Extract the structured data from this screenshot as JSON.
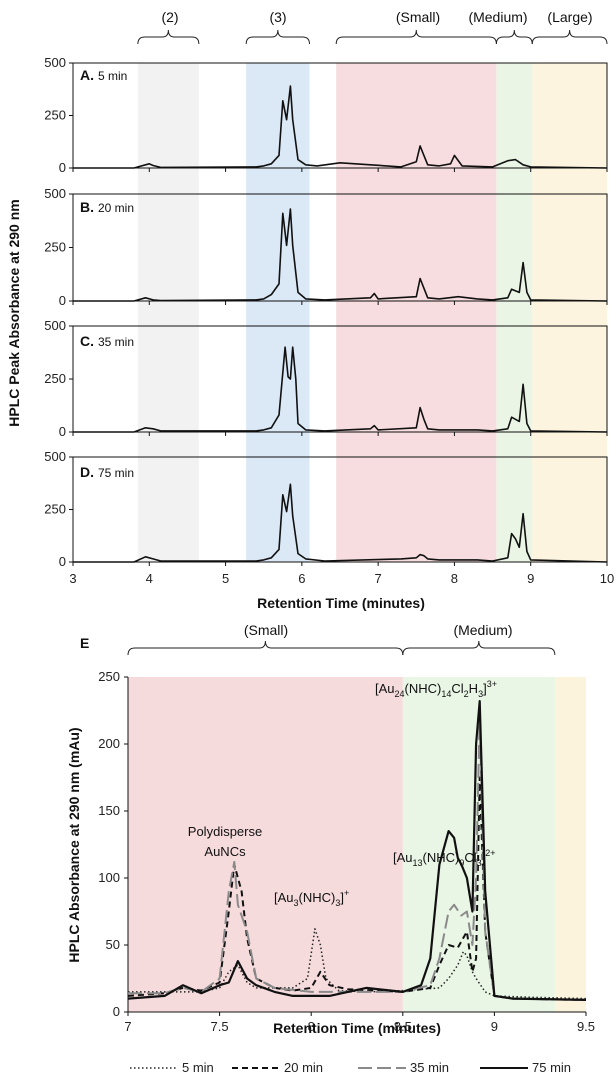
{
  "top": {
    "brackets": [
      "(2)",
      "(3)",
      "(Small)",
      "(Medium)",
      "(Large)"
    ],
    "ylabel": "HPLC Peak Absorbance at 290 nm",
    "xlabel": "Retention Time (minutes)",
    "xticks": [
      "3",
      "4",
      "5",
      "6",
      "7",
      "8",
      "9",
      "10"
    ],
    "yticks": [
      "0",
      "250",
      "500"
    ],
    "panels": [
      {
        "letter": "A.",
        "time": "5 min"
      },
      {
        "letter": "B.",
        "time": "20 min"
      },
      {
        "letter": "C.",
        "time": "35 min"
      },
      {
        "letter": "D.",
        "time": "75 min"
      }
    ]
  },
  "bottom": {
    "letter": "E",
    "brackets": [
      "(Small)",
      "(Medium)"
    ],
    "ylabel": "HPLC Absorbance at 290 nm (mAu)",
    "xlabel": "Retention Time (minutes)",
    "xticks": [
      "7",
      "7.5",
      "8",
      "8.5",
      "9",
      "9.5"
    ],
    "yticks": [
      "0",
      "50",
      "100",
      "150",
      "200",
      "250"
    ],
    "annotations": {
      "poly1": "Polydisperse",
      "poly2": "AuNCs"
    },
    "legend": [
      "5 min",
      "20 min",
      "35 min",
      "75 min"
    ]
  },
  "colors": {
    "region2": "#ededed",
    "region3": "#cfe0f2",
    "small": "#f4d2d4",
    "medium": "#e3f2de",
    "large": "#fbf0d4",
    "line5": "#222222",
    "line20": "#111111",
    "line35": "#8a8a8a",
    "line75": "#111111"
  },
  "chart_data": [
    {
      "type": "line",
      "title": "",
      "xlabel": "Retention Time (minutes)",
      "ylabel": "HPLC Peak Absorbance at 290 nm",
      "xlim": [
        3,
        10
      ],
      "ylim": [
        0,
        500
      ],
      "regions": [
        {
          "label": "(2)",
          "range": [
            3.85,
            4.65
          ]
        },
        {
          "label": "(3)",
          "range": [
            5.27,
            6.1
          ]
        },
        {
          "label": "(Small)",
          "range": [
            6.45,
            8.55
          ]
        },
        {
          "label": "(Medium)",
          "range": [
            8.55,
            9.02
          ]
        },
        {
          "label": "(Large)",
          "range": [
            9.02,
            10
          ]
        }
      ],
      "panels": [
        {
          "name": "A. 5 min",
          "x": [
            3.0,
            3.8,
            3.95,
            4.0,
            4.05,
            4.15,
            5.4,
            5.5,
            5.6,
            5.7,
            5.75,
            5.8,
            5.85,
            5.88,
            5.95,
            6.05,
            6.2,
            6.5,
            6.9,
            7.3,
            7.5,
            7.55,
            7.6,
            7.65,
            7.8,
            7.95,
            8.0,
            8.1,
            8.5,
            8.7,
            8.8,
            8.9,
            9.0,
            10.0
          ],
          "y": [
            0,
            0,
            15,
            20,
            12,
            3,
            5,
            10,
            20,
            60,
            320,
            230,
            390,
            230,
            40,
            15,
            10,
            25,
            15,
            5,
            30,
            105,
            60,
            15,
            10,
            20,
            60,
            10,
            5,
            35,
            40,
            15,
            5,
            0
          ]
        },
        {
          "name": "B. 20 min",
          "x": [
            3.0,
            3.8,
            3.95,
            4.05,
            4.15,
            5.4,
            5.5,
            5.6,
            5.7,
            5.75,
            5.8,
            5.85,
            5.88,
            5.95,
            6.05,
            6.3,
            6.9,
            6.95,
            7.0,
            7.5,
            7.55,
            7.6,
            7.65,
            7.8,
            8.05,
            8.3,
            8.5,
            8.7,
            8.75,
            8.85,
            8.9,
            8.95,
            9.0,
            10.0
          ],
          "y": [
            0,
            0,
            15,
            5,
            2,
            5,
            10,
            30,
            80,
            410,
            260,
            430,
            260,
            40,
            10,
            5,
            15,
            35,
            10,
            20,
            105,
            60,
            15,
            10,
            20,
            10,
            5,
            15,
            55,
            40,
            180,
            40,
            5,
            0
          ]
        },
        {
          "name": "C. 35 min",
          "x": [
            3.0,
            3.8,
            3.95,
            4.05,
            4.15,
            5.4,
            5.5,
            5.6,
            5.7,
            5.78,
            5.82,
            5.85,
            5.88,
            5.92,
            5.95,
            6.05,
            6.3,
            6.9,
            6.95,
            7.0,
            7.5,
            7.55,
            7.6,
            7.65,
            7.8,
            8.3,
            8.5,
            8.7,
            8.75,
            8.85,
            8.9,
            8.95,
            9.0,
            10.0
          ],
          "y": [
            0,
            0,
            20,
            15,
            5,
            5,
            10,
            20,
            80,
            400,
            260,
            250,
            400,
            250,
            40,
            10,
            5,
            15,
            30,
            10,
            20,
            115,
            60,
            15,
            10,
            10,
            5,
            15,
            70,
            50,
            225,
            40,
            5,
            0
          ]
        },
        {
          "name": "D. 75 min",
          "x": [
            3.0,
            3.8,
            3.95,
            4.05,
            4.15,
            5.4,
            5.5,
            5.6,
            5.7,
            5.75,
            5.8,
            5.85,
            5.88,
            5.95,
            6.05,
            6.3,
            7.3,
            7.5,
            7.55,
            7.6,
            7.65,
            7.8,
            8.3,
            8.5,
            8.7,
            8.75,
            8.8,
            8.85,
            8.9,
            8.95,
            9.0,
            10.0
          ],
          "y": [
            0,
            0,
            25,
            15,
            5,
            5,
            10,
            20,
            60,
            320,
            240,
            370,
            220,
            40,
            15,
            5,
            15,
            20,
            35,
            30,
            15,
            10,
            10,
            5,
            20,
            135,
            110,
            70,
            230,
            50,
            10,
            0
          ]
        }
      ]
    },
    {
      "type": "line",
      "title": "",
      "xlabel": "Retention Time (minutes)",
      "ylabel": "HPLC Absorbance at 290 nm (mAu)",
      "xlim": [
        7,
        9.5
      ],
      "ylim": [
        0,
        250
      ],
      "regions": [
        {
          "label": "(Small)",
          "range": [
            7,
            8.5
          ]
        },
        {
          "label": "(Medium)",
          "range": [
            8.5,
            9.33
          ]
        },
        {
          "label": "",
          "range": [
            9.33,
            9.5
          ]
        }
      ],
      "annotations": [
        "Polydisperse AuNCs",
        "[Au3(NHC)3]+",
        "[Au13(NHC)9Cl3]2+",
        "[Au24(NHC)14Cl2H3]3+"
      ],
      "series": [
        {
          "name": "5 min",
          "style": "dotted",
          "x": [
            7,
            7.2,
            7.4,
            7.5,
            7.55,
            7.6,
            7.65,
            7.7,
            7.8,
            7.9,
            7.98,
            8.02,
            8.05,
            8.08,
            8.15,
            8.3,
            8.5,
            8.7,
            8.75,
            8.8,
            8.83,
            8.85,
            8.88,
            8.9,
            8.95,
            9.0,
            9.2,
            9.5
          ],
          "y": [
            15,
            15,
            15,
            18,
            30,
            35,
            22,
            18,
            18,
            18,
            25,
            62,
            50,
            25,
            16,
            15,
            16,
            18,
            25,
            35,
            45,
            42,
            30,
            25,
            15,
            12,
            11,
            10
          ]
        },
        {
          "name": "20 min",
          "style": "dashed",
          "x": [
            7,
            7.2,
            7.3,
            7.4,
            7.5,
            7.55,
            7.58,
            7.62,
            7.65,
            7.7,
            7.8,
            7.9,
            8.0,
            8.05,
            8.1,
            8.2,
            8.5,
            8.65,
            8.7,
            8.75,
            8.8,
            8.85,
            8.88,
            8.9,
            8.92,
            8.95,
            9.0,
            9.1,
            9.5
          ],
          "y": [
            12,
            14,
            18,
            16,
            22,
            75,
            110,
            90,
            55,
            25,
            18,
            16,
            18,
            30,
            20,
            17,
            15,
            18,
            35,
            50,
            48,
            60,
            30,
            40,
            175,
            60,
            12,
            10,
            9
          ]
        },
        {
          "name": "35 min",
          "style": "longdash",
          "x": [
            7,
            7.2,
            7.3,
            7.4,
            7.5,
            7.55,
            7.58,
            7.6,
            7.65,
            7.7,
            7.8,
            8.0,
            8.2,
            8.5,
            8.65,
            8.7,
            8.75,
            8.78,
            8.82,
            8.85,
            8.88,
            8.9,
            8.92,
            8.95,
            9.0,
            9.1,
            9.5
          ],
          "y": [
            14,
            14,
            18,
            15,
            25,
            90,
            112,
            80,
            60,
            25,
            18,
            15,
            15,
            15,
            20,
            40,
            75,
            80,
            72,
            75,
            50,
            100,
            220,
            60,
            12,
            10,
            9
          ]
        },
        {
          "name": "75 min",
          "style": "solid",
          "x": [
            7,
            7.2,
            7.3,
            7.4,
            7.5,
            7.55,
            7.6,
            7.65,
            7.7,
            7.8,
            7.9,
            8.0,
            8.1,
            8.3,
            8.5,
            8.6,
            8.65,
            8.7,
            8.75,
            8.78,
            8.8,
            8.82,
            8.85,
            8.88,
            8.9,
            8.92,
            8.95,
            9.0,
            9.1,
            9.5
          ],
          "y": [
            10,
            12,
            20,
            14,
            20,
            22,
            38,
            25,
            20,
            15,
            12,
            12,
            12,
            18,
            15,
            20,
            40,
            110,
            135,
            130,
            115,
            110,
            100,
            75,
            200,
            232,
            90,
            12,
            10,
            9
          ]
        }
      ]
    }
  ]
}
